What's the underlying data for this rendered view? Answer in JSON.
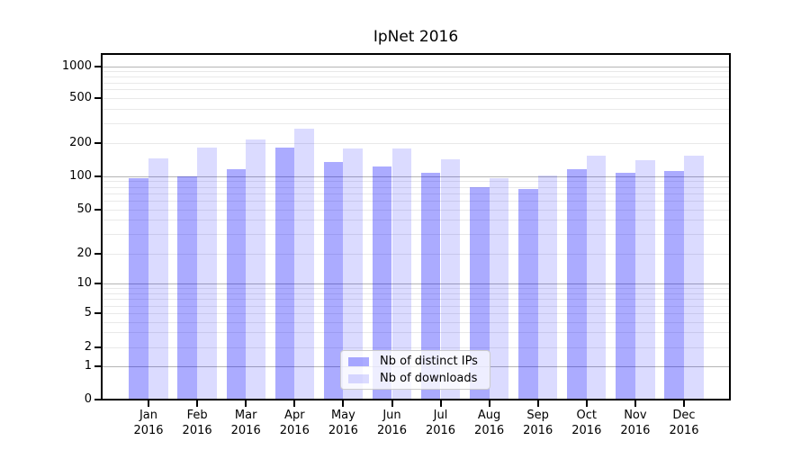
{
  "chart_data": {
    "type": "bar",
    "title": "IpNet 2016",
    "categories": [
      "Jan",
      "Feb",
      "Mar",
      "Apr",
      "May",
      "Jun",
      "Jul",
      "Aug",
      "Sep",
      "Oct",
      "Nov",
      "Dec"
    ],
    "x_tick_year": "2016",
    "series": [
      {
        "name": "Nb of distinct IPs",
        "color": "rgba(0,0,255,0.33)",
        "values": [
          96,
          100,
          117,
          182,
          134,
          123,
          108,
          80,
          77,
          116,
          108,
          111
        ]
      },
      {
        "name": "Nb of downloads",
        "color": "rgba(0,0,255,0.14)",
        "values": [
          145,
          183,
          215,
          270,
          180,
          180,
          142,
          96,
          101,
          153,
          141,
          155
        ]
      }
    ],
    "yscale": "symlog",
    "ylim": [
      0,
      1300
    ],
    "y_ticks": [
      0,
      1,
      2,
      5,
      10,
      20,
      50,
      100,
      200,
      500,
      1000
    ],
    "grid": "horizontal-log",
    "legend_position": "lower center"
  }
}
